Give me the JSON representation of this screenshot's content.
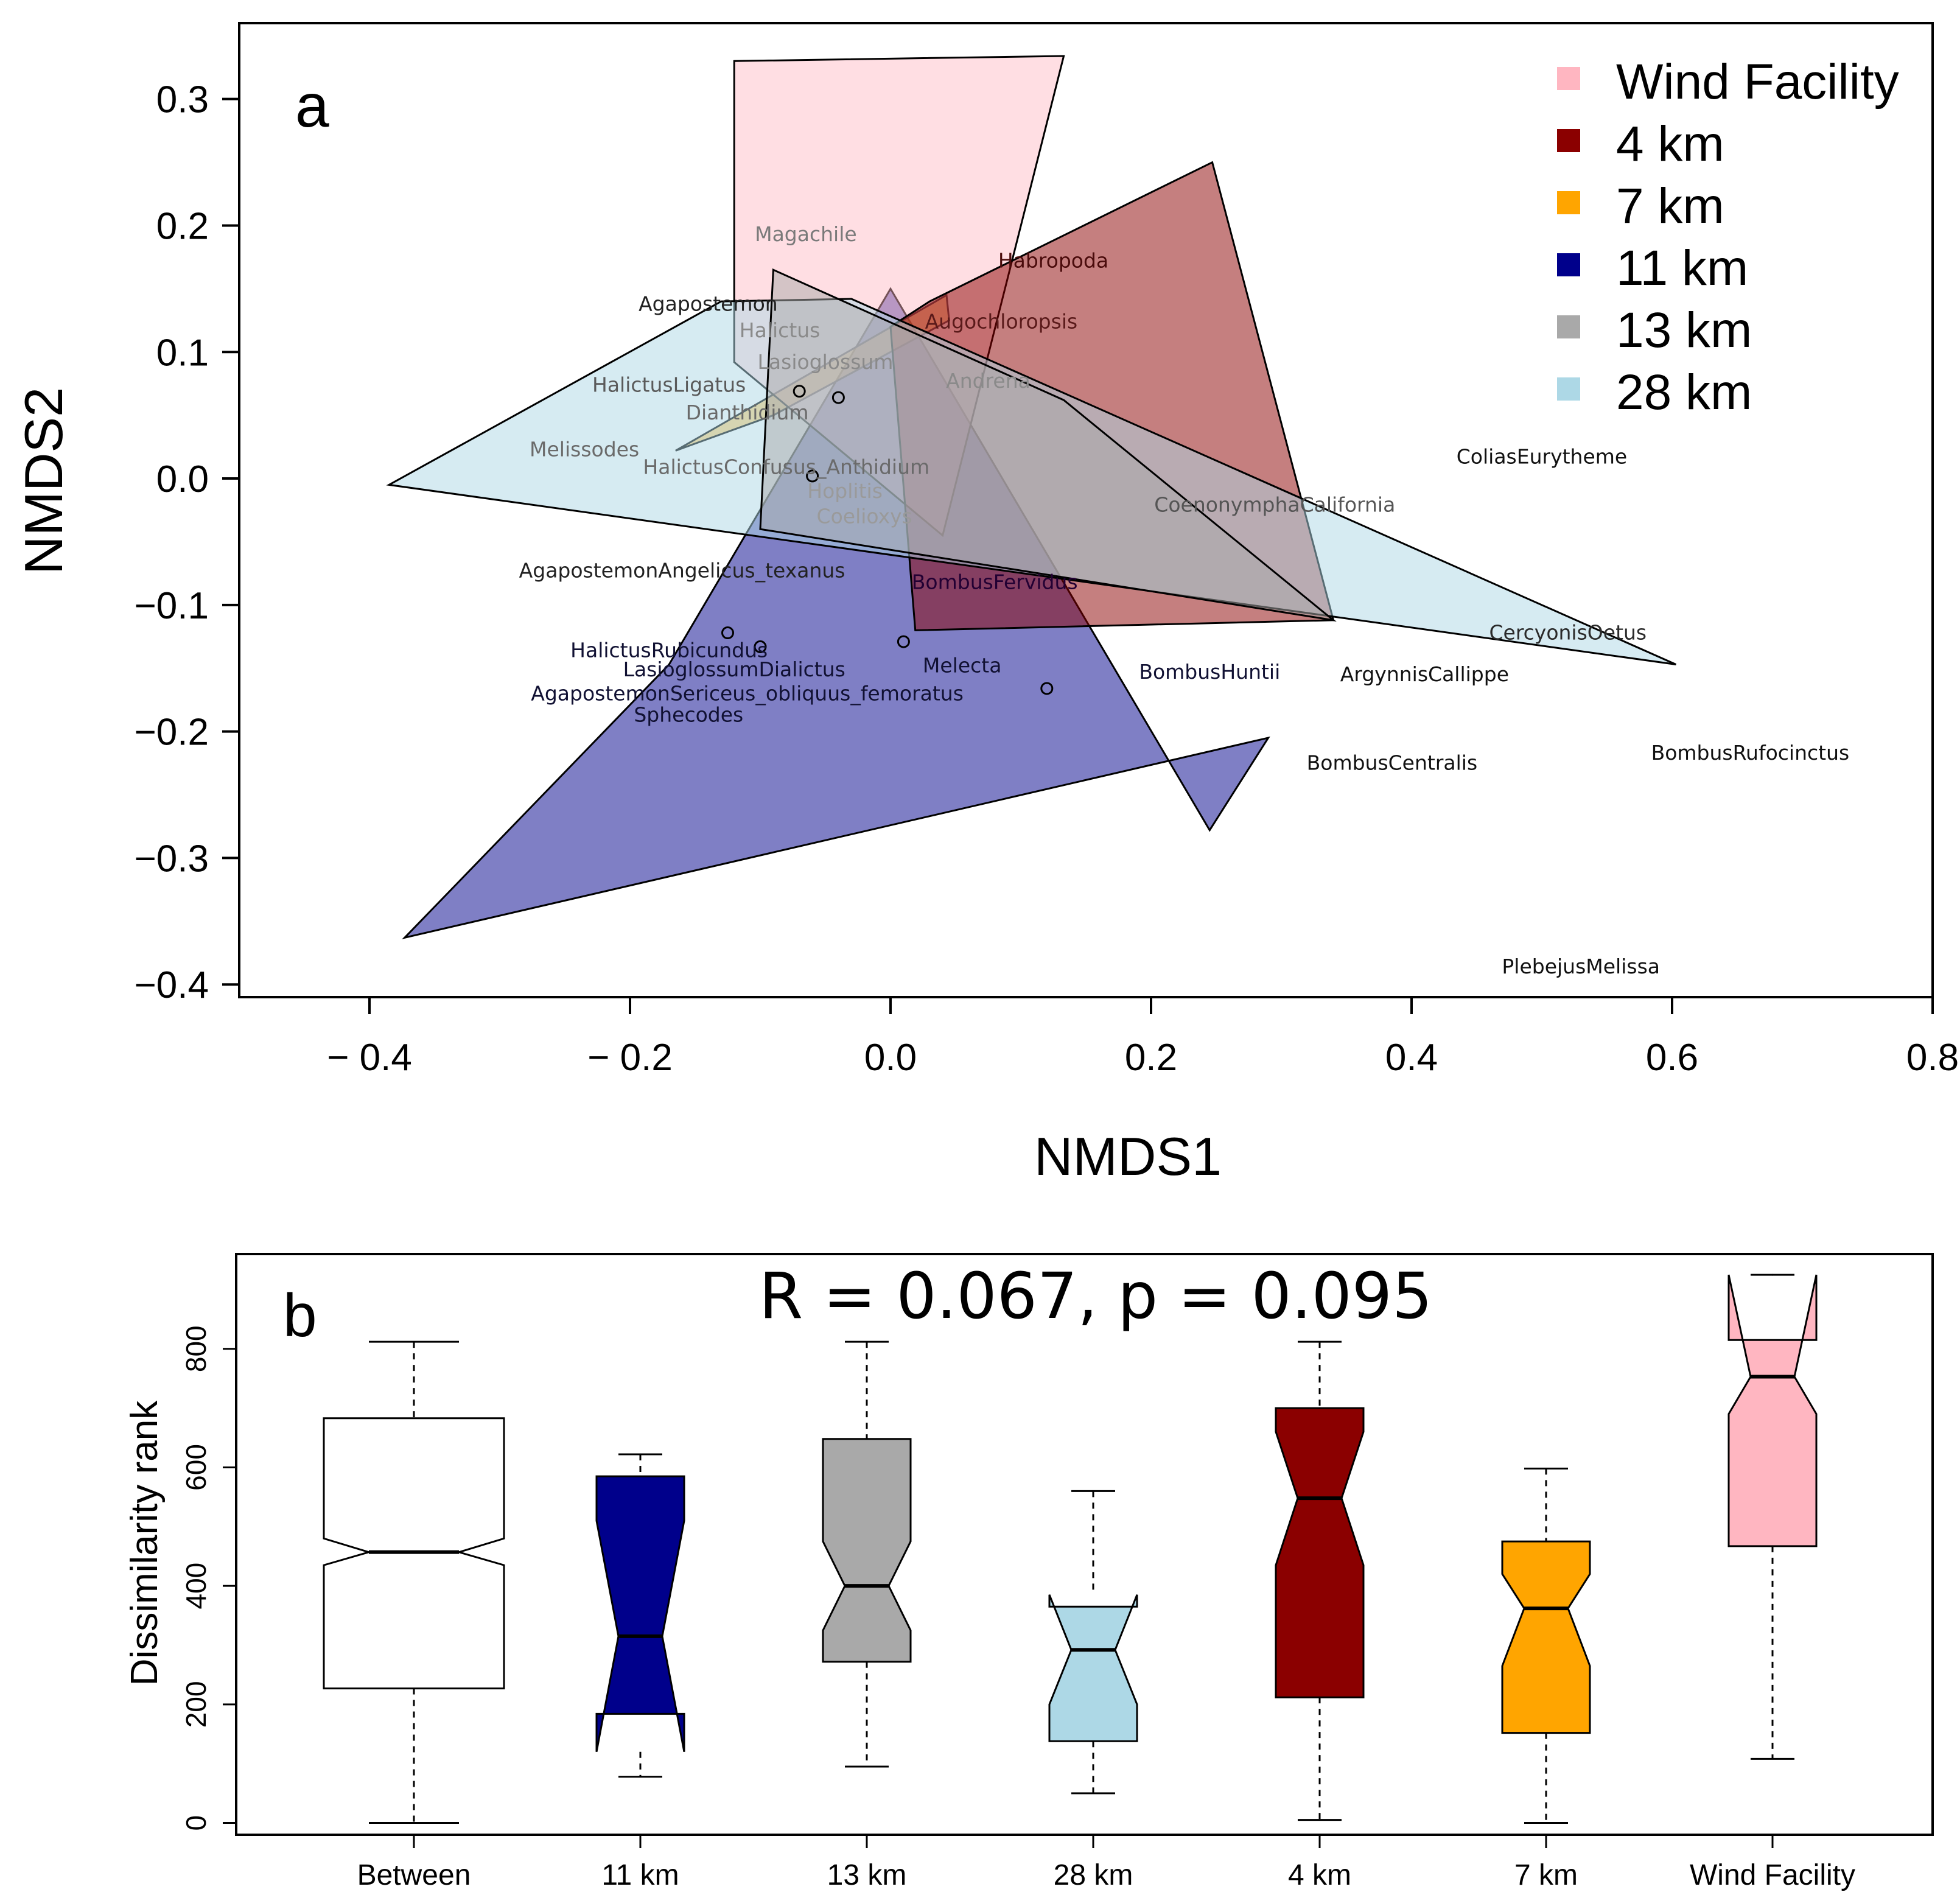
{
  "chart_data": [
    {
      "panel_label": "a",
      "type": "scatter",
      "subtype": "nmds-ordination-with-group-hulls",
      "xlabel": "NMDS1",
      "ylabel": "NMDS2",
      "xlim": [
        -0.5,
        0.8
      ],
      "ylim": [
        -0.41,
        0.36
      ],
      "x_ticks": [
        {
          "value": -0.4,
          "label": "− 0.4"
        },
        {
          "value": -0.2,
          "label": "− 0.2"
        },
        {
          "value": 0.0,
          "label": "0.0"
        },
        {
          "value": 0.2,
          "label": "0.2"
        },
        {
          "value": 0.4,
          "label": "0.4"
        },
        {
          "value": 0.6,
          "label": "0.6"
        },
        {
          "value": 0.8,
          "label": "0.8"
        }
      ],
      "y_ticks": [
        {
          "value": 0.3,
          "label": "0.3"
        },
        {
          "value": 0.2,
          "label": "0.2"
        },
        {
          "value": 0.1,
          "label": "0.1"
        },
        {
          "value": 0.0,
          "label": "0.0"
        },
        {
          "value": -0.1,
          "label": "−0.1"
        },
        {
          "value": -0.2,
          "label": "−0.2"
        },
        {
          "value": -0.3,
          "label": "−0.3"
        },
        {
          "value": -0.4,
          "label": "−0.4"
        }
      ],
      "legend": {
        "position": "top-right",
        "entries": [
          {
            "label": "Wind Facility",
            "color": "#ffb6c1"
          },
          {
            "label": "4 km",
            "color": "#8b0000"
          },
          {
            "label": "7 km",
            "color": "#ffa500"
          },
          {
            "label": "11 km",
            "color": "#00008b"
          },
          {
            "label": "13 km",
            "color": "#a9a9a9"
          },
          {
            "label": "28 km",
            "color": "#add8e6"
          }
        ]
      },
      "hulls": [
        {
          "group": "11 km",
          "fill": "#00008b",
          "opacity": 0.5,
          "points": [
            [
              -0.373,
              -0.363
            ],
            [
              0.29,
              -0.205
            ],
            [
              0.245,
              -0.278
            ],
            [
              0.0,
              0.15
            ],
            [
              -0.17,
              -0.147
            ]
          ]
        },
        {
          "group": "7 km",
          "fill": "#ffa500",
          "opacity": 0.5,
          "points": [
            [
              -0.165,
              0.022
            ],
            [
              0.043,
              0.145
            ],
            [
              0.045,
              0.125
            ],
            [
              -0.09,
              0.05
            ]
          ]
        },
        {
          "group": "Wind Facility",
          "fill": "#ffb6c1",
          "opacity": 0.45,
          "points": [
            [
              -0.12,
              0.33
            ],
            [
              0.133,
              0.334
            ],
            [
              0.04,
              -0.045
            ],
            [
              -0.12,
              0.092
            ]
          ]
        },
        {
          "group": "4 km",
          "fill": "#8b0000",
          "opacity": 0.5,
          "points": [
            [
              0.03,
              0.14
            ],
            [
              0.247,
              0.25
            ],
            [
              0.34,
              -0.112
            ],
            [
              0.019,
              -0.12
            ],
            [
              0.0,
              0.12
            ]
          ]
        },
        {
          "group": "28 km",
          "fill": "#add8e6",
          "opacity": 0.5,
          "points": [
            [
              -0.385,
              -0.005
            ],
            [
              -0.13,
              0.14
            ],
            [
              -0.03,
              0.142
            ],
            [
              0.603,
              -0.147
            ]
          ]
        },
        {
          "group": "13 km",
          "fill": "#a9a9a9",
          "opacity": 0.5,
          "points": [
            [
              -0.09,
              0.165
            ],
            [
              0.133,
              0.062
            ],
            [
              0.34,
              -0.112
            ],
            [
              -0.1,
              -0.04
            ]
          ]
        }
      ],
      "points": [
        {
          "x": -0.07,
          "y": 0.069
        },
        {
          "x": -0.04,
          "y": 0.064
        },
        {
          "x": -0.06,
          "y": 0.002
        },
        {
          "x": -0.125,
          "y": -0.122
        },
        {
          "x": -0.1,
          "y": -0.133
        },
        {
          "x": 0.01,
          "y": -0.129
        },
        {
          "x": 0.12,
          "y": -0.166
        }
      ],
      "species": [
        {
          "name": "Magachile",
          "x": -0.065,
          "y": 0.193,
          "color": "#7a7a7a"
        },
        {
          "name": "Habropoda",
          "x": 0.125,
          "y": 0.172,
          "color": "#4a0b0b"
        },
        {
          "name": "Agapostemon",
          "x": -0.14,
          "y": 0.138,
          "color": "#222222"
        },
        {
          "name": "Halictus",
          "x": -0.085,
          "y": 0.117,
          "color": "#8a8a8a"
        },
        {
          "name": "Augochloropsis",
          "x": 0.085,
          "y": 0.124,
          "color": "#5a1a1a"
        },
        {
          "name": "Lasioglossum",
          "x": -0.05,
          "y": 0.092,
          "color": "#8a8a8a"
        },
        {
          "name": "Andrena",
          "x": 0.075,
          "y": 0.077,
          "color": "#8a8a8a"
        },
        {
          "name": "HalictusLigatus",
          "x": -0.17,
          "y": 0.074,
          "color": "#5a5a5a"
        },
        {
          "name": "Dianthidium",
          "x": -0.11,
          "y": 0.052,
          "color": "#6a6a6a"
        },
        {
          "name": "Melissodes",
          "x": -0.235,
          "y": 0.023,
          "color": "#6a6a6a"
        },
        {
          "name": "HalictusConfusus_Anthidium",
          "x": -0.08,
          "y": 0.009,
          "color": "#6a6a6a"
        },
        {
          "name": "Hoplitis",
          "x": -0.035,
          "y": -0.01,
          "color": "#9a9a9a"
        },
        {
          "name": "Coelioxys",
          "x": -0.02,
          "y": -0.03,
          "color": "#9a9a9a"
        },
        {
          "name": "CoenonymphaCalifornia",
          "x": 0.295,
          "y": -0.021,
          "color": "#555555"
        },
        {
          "name": "ColiasEurytheme",
          "x": 0.5,
          "y": 0.017,
          "color": "#111111"
        },
        {
          "name": "AgapostemonAngelicus_texanus",
          "x": -0.16,
          "y": -0.073,
          "color": "#222222"
        },
        {
          "name": "BombusFervidus",
          "x": 0.08,
          "y": -0.082,
          "color": "#220033"
        },
        {
          "name": "CercyonisOetus",
          "x": 0.52,
          "y": -0.122,
          "color": "#2a2a2a"
        },
        {
          "name": "HalictusRubicundus",
          "x": -0.17,
          "y": -0.136,
          "color": "#111133"
        },
        {
          "name": "LasioglossumDialictus",
          "x": -0.12,
          "y": -0.151,
          "color": "#111133"
        },
        {
          "name": "Melecta",
          "x": 0.055,
          "y": -0.148,
          "color": "#111133"
        },
        {
          "name": "BombusHuntii",
          "x": 0.245,
          "y": -0.153,
          "color": "#111133"
        },
        {
          "name": "ArgynnisCallippe",
          "x": 0.41,
          "y": -0.155,
          "color": "#111111"
        },
        {
          "name": "AgapostemonSericeus_obliquus_femoratus",
          "x": -0.11,
          "y": -0.17,
          "color": "#111133"
        },
        {
          "name": "Sphecodes",
          "x": -0.155,
          "y": -0.187,
          "color": "#111133"
        },
        {
          "name": "BombusCentralis",
          "x": 0.385,
          "y": -0.225,
          "color": "#111111"
        },
        {
          "name": "BombusRufocinctus",
          "x": 0.66,
          "y": -0.217,
          "color": "#111111"
        },
        {
          "name": "PlebejusMelissa",
          "x": 0.53,
          "y": -0.386,
          "color": "#111111"
        }
      ]
    },
    {
      "panel_label": "b",
      "type": "box",
      "subtype": "notched-boxplot",
      "title": "R = 0.067, p = 0.095",
      "ylabel": "Dissimilarity rank",
      "xlabel": "",
      "ylim": [
        -20,
        960
      ],
      "y_ticks": [
        {
          "value": 0,
          "label": "0"
        },
        {
          "value": 200,
          "label": "200"
        },
        {
          "value": 400,
          "label": "400"
        },
        {
          "value": 600,
          "label": "600"
        },
        {
          "value": 800,
          "label": "800"
        }
      ],
      "categories": [
        "Between",
        "11 km",
        "13 km",
        "28 km",
        "4 km",
        "7 km",
        "Wind Facility"
      ],
      "boxes": [
        {
          "label": "Between",
          "color": "#ffffff",
          "min": 0,
          "q1": 227,
          "median": 457,
          "q3": 683,
          "max": 812,
          "notch_low": 435,
          "notch_high": 480
        },
        {
          "label": "11 km",
          "color": "#00008b",
          "min": 78,
          "q1": 184,
          "median": 315,
          "q3": 585,
          "max": 622,
          "notch_low": 120,
          "notch_high": 510
        },
        {
          "label": "13 km",
          "color": "#a9a9a9",
          "min": 95,
          "q1": 272,
          "median": 400,
          "q3": 648,
          "max": 812,
          "notch_low": 325,
          "notch_high": 475
        },
        {
          "label": "28 km",
          "color": "#add8e6",
          "min": 50,
          "q1": 138,
          "median": 292,
          "q3": 365,
          "max": 560,
          "notch_low": 200,
          "notch_high": 385
        },
        {
          "label": "4 km",
          "color": "#8b0000",
          "min": 5,
          "q1": 212,
          "median": 548,
          "q3": 700,
          "max": 812,
          "notch_low": 435,
          "notch_high": 660
        },
        {
          "label": "7 km",
          "color": "#ffa500",
          "min": 0,
          "q1": 152,
          "median": 362,
          "q3": 475,
          "max": 598,
          "notch_low": 265,
          "notch_high": 420
        },
        {
          "label": "Wind Facility",
          "color": "#ffb6c1",
          "min": 108,
          "q1": 467,
          "median": 753,
          "q3": 815,
          "max": 925,
          "notch_low": 690,
          "notch_high": 925
        }
      ]
    }
  ]
}
